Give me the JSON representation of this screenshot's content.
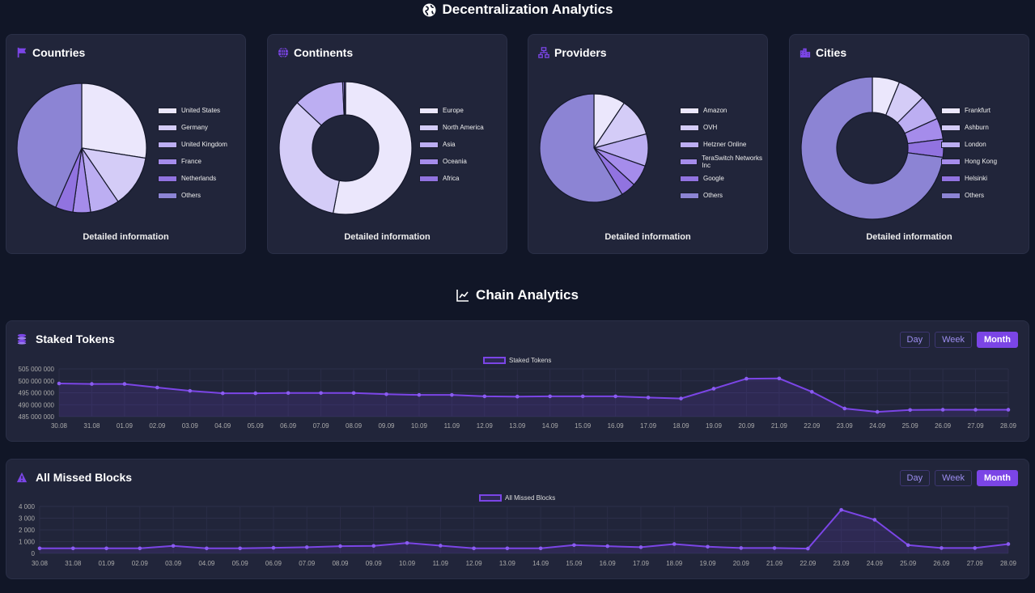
{
  "header": {
    "title": "Decentralization Analytics",
    "icon": "globe-icon"
  },
  "chain_header": {
    "title": "Chain Analytics",
    "icon": "chart-line-icon"
  },
  "colors": {
    "accent": "#7b45e6",
    "slices": [
      "#ebe7fc",
      "#d4ccf7",
      "#bcaef2",
      "#a58ceb",
      "#9173e0",
      "#8c84d4"
    ]
  },
  "detail_label": "Detailed information",
  "chart_data": [
    {
      "type": "pie",
      "title": "Countries",
      "icon": "flag-icon",
      "donut": false,
      "categories": [
        "United States",
        "Germany",
        "United Kingdom",
        "France",
        "Netherlands",
        "Others"
      ],
      "values": [
        27.5,
        13,
        7.3,
        4.4,
        4.4,
        43.4
      ]
    },
    {
      "type": "pie",
      "title": "Continents",
      "icon": "globe-grid-icon",
      "donut": true,
      "categories": [
        "Europe",
        "North America",
        "Asia",
        "Oceania",
        "Africa"
      ],
      "values": [
        53,
        34,
        12.3,
        0.4,
        0.3
      ]
    },
    {
      "type": "pie",
      "title": "Providers",
      "icon": "network-icon",
      "donut": false,
      "categories": [
        "Amazon",
        "OVH",
        "Hetzner Online",
        "TeraSwitch Networks Inc",
        "Google",
        "Others"
      ],
      "values": [
        9.4,
        11.4,
        9.6,
        6.4,
        4.5,
        58.7
      ]
    },
    {
      "type": "pie",
      "title": "Cities",
      "icon": "city-icon",
      "donut": true,
      "categories": [
        "Frankfurt",
        "Ashburn",
        "London",
        "Hong Kong",
        "Helsinki",
        "Others"
      ],
      "values": [
        6.2,
        6.3,
        5.7,
        4.8,
        4.1,
        72.9
      ]
    },
    {
      "type": "line",
      "title": "Staked Tokens",
      "icon": "coins-icon",
      "legend": "Staked Tokens",
      "ylim": [
        485000000,
        505000000
      ],
      "yticks": [
        "505 000 000",
        "500 000 000",
        "495 000 000",
        "490 000 000",
        "485 000 000"
      ],
      "x": [
        "30.08",
        "31.08",
        "01.09",
        "02.09",
        "03.09",
        "04.09",
        "05.09",
        "06.09",
        "07.09",
        "08.09",
        "09.09",
        "10.09",
        "11.09",
        "12.09",
        "13.09",
        "14.09",
        "15.09",
        "16.09",
        "17.09",
        "18.09",
        "19.09",
        "20.09",
        "21.09",
        "22.09",
        "23.09",
        "24.09",
        "25.09",
        "26.09",
        "27.09",
        "28.09"
      ],
      "values": [
        498900000,
        498700000,
        498700000,
        497200000,
        495800000,
        494800000,
        494800000,
        494900000,
        494900000,
        494900000,
        494400000,
        494100000,
        494100000,
        493500000,
        493400000,
        493500000,
        493500000,
        493500000,
        493000000,
        492600000,
        496700000,
        500900000,
        501000000,
        495400000,
        488400000,
        487000000,
        487800000,
        487900000,
        487900000,
        487900000
      ]
    },
    {
      "type": "line",
      "title": "All Missed Blocks",
      "icon": "warning-icon",
      "legend": "All Missed Blocks",
      "ylim": [
        0,
        4000
      ],
      "yticks": [
        "4 000",
        "3 000",
        "2 000",
        "1 000",
        "0"
      ],
      "x": [
        "30.08",
        "31.08",
        "01.09",
        "02.09",
        "03.09",
        "04.09",
        "05.09",
        "06.09",
        "07.09",
        "08.09",
        "09.09",
        "10.09",
        "11.09",
        "12.09",
        "13.09",
        "14.09",
        "15.09",
        "16.09",
        "17.09",
        "18.09",
        "19.09",
        "20.09",
        "21.09",
        "22.09",
        "23.09",
        "24.09",
        "25.09",
        "26.09",
        "27.09",
        "28.09"
      ],
      "values": [
        430,
        430,
        430,
        430,
        636,
        430,
        430,
        477,
        523,
        614,
        636,
        886,
        659,
        430,
        430,
        430,
        705,
        614,
        523,
        795,
        568,
        455,
        455,
        409,
        3705,
        2864,
        705,
        455,
        455,
        795
      ]
    }
  ],
  "range_buttons": [
    "Day",
    "Week",
    "Month"
  ],
  "range_selected": "Month"
}
